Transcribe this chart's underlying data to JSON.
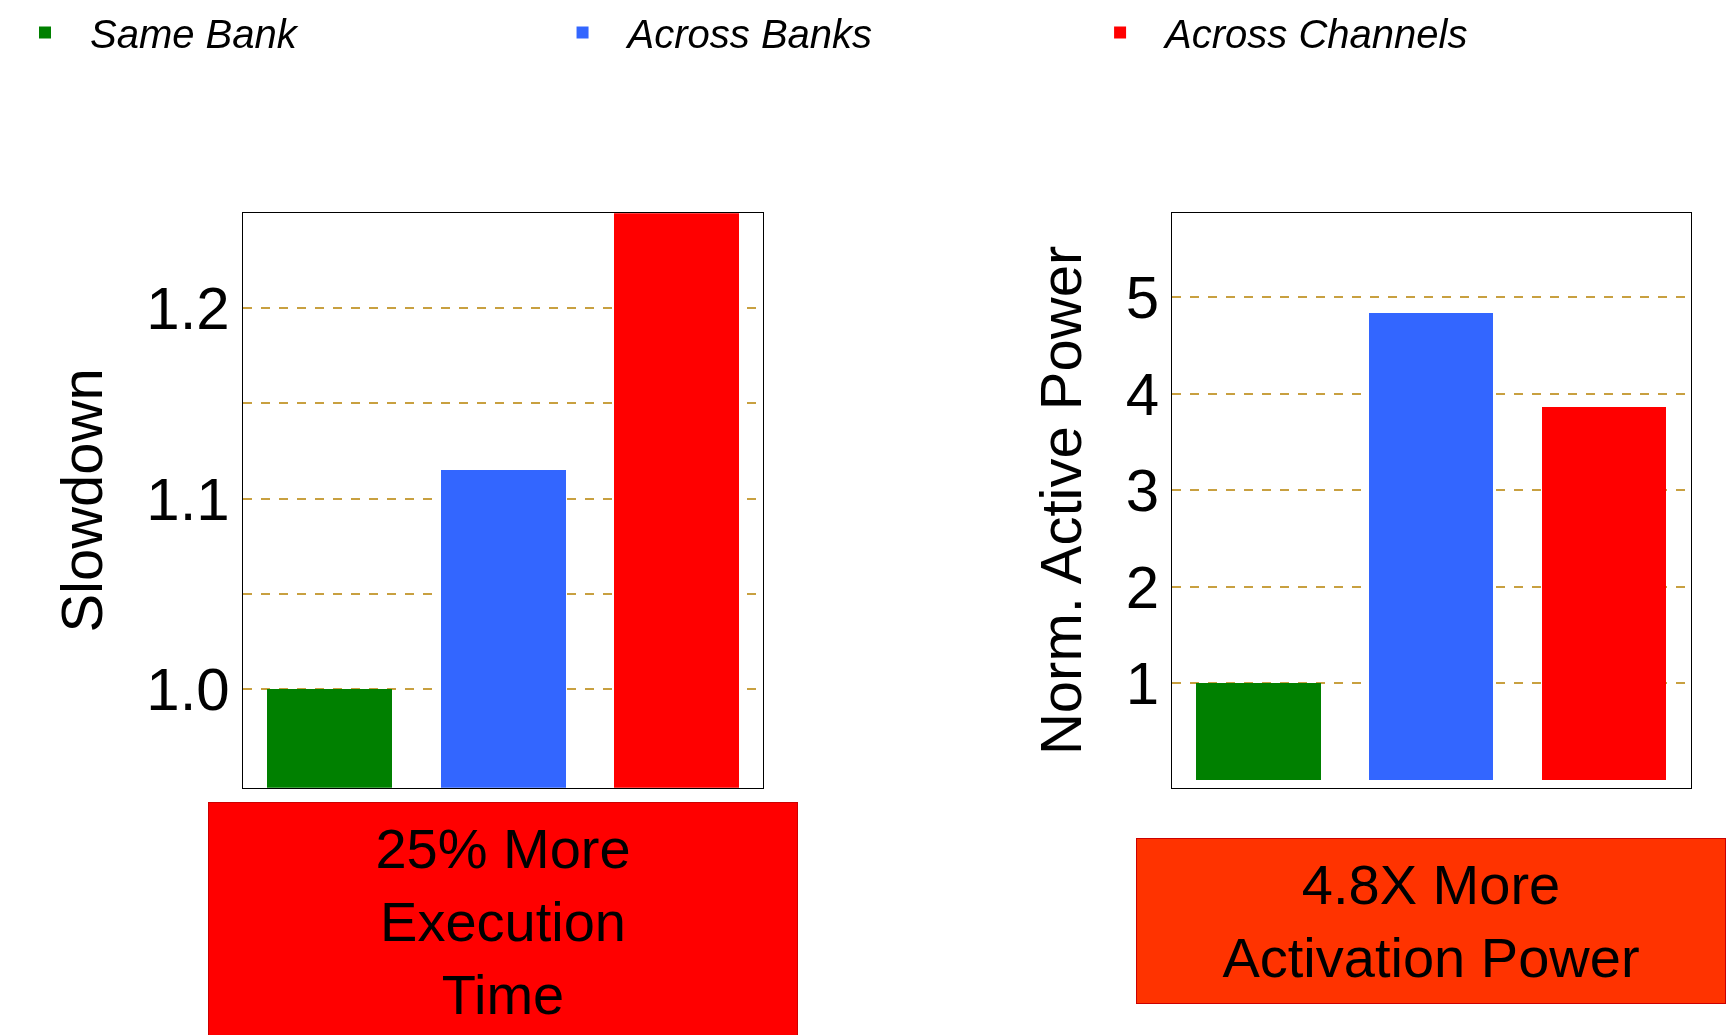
{
  "chart_data": [
    {
      "type": "bar",
      "ylabel": "Slowdown",
      "categories": [
        null,
        null,
        null
      ],
      "series": [
        {
          "name": "Same Bank",
          "color": "#008000",
          "values": [
            1.0,
            null,
            null
          ]
        },
        {
          "name": "Across Banks",
          "color": "#3366ff",
          "values": [
            null,
            1.115,
            null
          ]
        },
        {
          "name": "Across Channels",
          "color": "#ff0000",
          "values": [
            null,
            null,
            1.25
          ]
        }
      ],
      "ylim": [
        0.948,
        1.25
      ],
      "yticks": [
        {
          "value": 1,
          "label": "1.0"
        },
        {
          "value": 1.05,
          "label": null
        },
        1.1,
        {
          "value": 1.15,
          "label": null
        },
        1.2
      ],
      "grid": "y",
      "legend": "top",
      "tick_labels": "y",
      "annotations": [
        "25% More Execution Time"
      ]
    },
    {
      "type": "bar",
      "ylabel": "Norm. Active Power",
      "categories": [
        null,
        null,
        null
      ],
      "series": [
        {
          "color": "#008000",
          "values": [
            1.0,
            null,
            null
          ]
        },
        {
          "color": "#3366ff",
          "values": [
            null,
            4.83,
            null
          ]
        },
        {
          "color": "#ff0000",
          "values": [
            null,
            null,
            3.86
          ]
        }
      ],
      "ylim": [
        -0.08,
        5.87
      ],
      "yticks": [
        1,
        2,
        3,
        4,
        5
      ],
      "grid": "y",
      "tick_labels": "y",
      "annotations": [
        "4.8X More Activation Power"
      ]
    }
  ]
}
